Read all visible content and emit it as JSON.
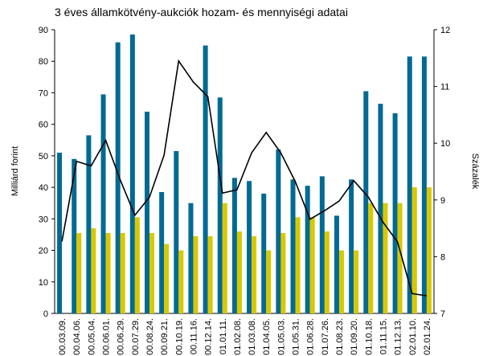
{
  "chart_data": {
    "type": "bar",
    "title": "3 éves államkötvény-aukciók hozam- és mennyiségi adatai",
    "y_label": "Milliárd forint",
    "y2_label": "Százalék",
    "categories": [
      "00.03.09.",
      "00.04.06.",
      "00.05.04.",
      "00.06.01.",
      "00.06.29.",
      "00.07.29.",
      "00.08.24.",
      "00.09.21.",
      "00.10.19.",
      "00.11.16.",
      "00.12.14.",
      "01.01.11.",
      "01.02.08.",
      "01.03.08.",
      "01.04.05.",
      "01.05.03.",
      "01.05.31.",
      "01.06.28.",
      "01.07.26.",
      "01.08.23.",
      "01.09.20.",
      "01.10.18.",
      "01.11.15.",
      "01.12.13.",
      "02.01.10.",
      "02.01.24."
    ],
    "series": [
      {
        "type": "bar",
        "color": "#006a93",
        "values": [
          51,
          49,
          56.5,
          69.5,
          86,
          88.5,
          64,
          38.5,
          51.5,
          35,
          85,
          68.5,
          43,
          42,
          38,
          52,
          42.5,
          40.5,
          43.5,
          31,
          42.5,
          70.5,
          66.5,
          63.5,
          81.5,
          81.5
        ]
      },
      {
        "type": "bar",
        "color": "#d8c800",
        "values": [
          null,
          25.5,
          27,
          25.5,
          25.5,
          30.5,
          25.5,
          22,
          20,
          24.5,
          24.5,
          35,
          26,
          24.5,
          20,
          25.5,
          30.5,
          30.5,
          26,
          20,
          20,
          35,
          35,
          35,
          40,
          40
        ]
      },
      {
        "type": "line",
        "axis": "y2",
        "color": "#000000",
        "values": [
          8.27,
          9.68,
          9.6,
          10.05,
          9.35,
          8.73,
          9.05,
          9.79,
          11.45,
          11.08,
          10.82,
          9.12,
          9.18,
          9.83,
          10.19,
          9.83,
          9.32,
          8.66,
          8.81,
          8.98,
          9.34,
          9.05,
          8.61,
          8.26,
          7.35,
          7.31
        ]
      }
    ],
    "ylim": [
      0,
      90
    ],
    "yticks": [
      0,
      10,
      20,
      30,
      40,
      50,
      60,
      70,
      80,
      90
    ],
    "y2lim": [
      7,
      12
    ],
    "y2ticks": [
      7,
      8,
      9,
      10,
      11,
      12
    ]
  }
}
